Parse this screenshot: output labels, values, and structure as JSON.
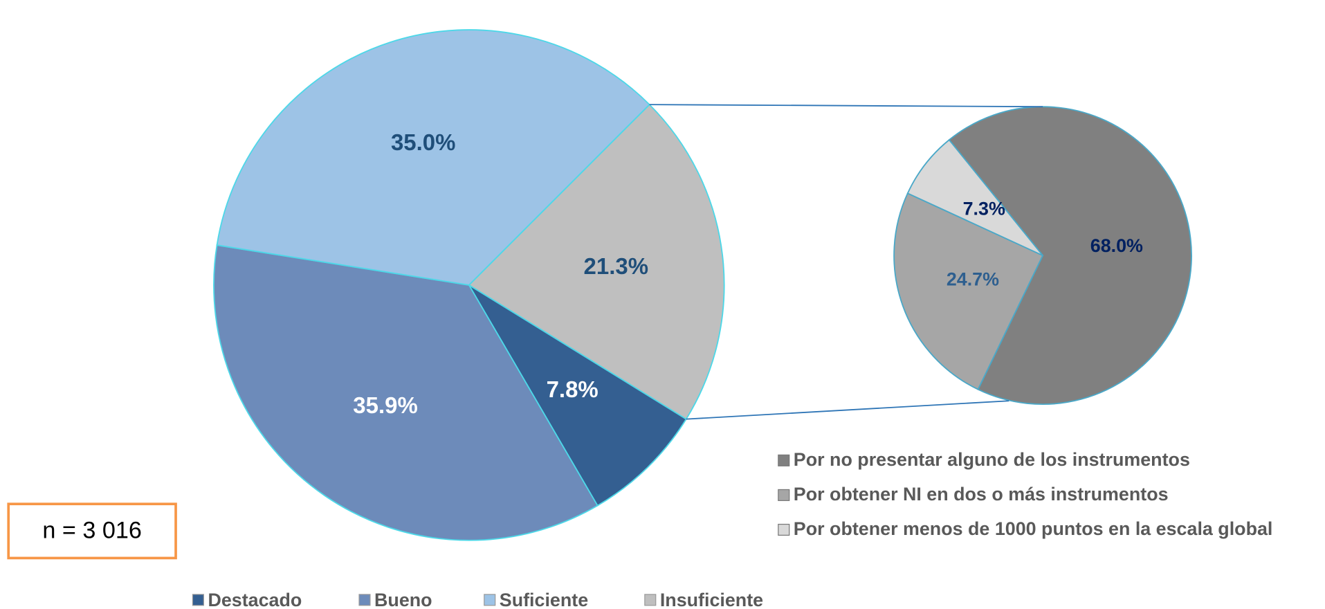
{
  "chart_data": [
    {
      "type": "pie",
      "categories": [
        "Destacado",
        "Bueno",
        "Suficiente",
        "Insuficiente"
      ],
      "values": [
        7.8,
        35.9,
        35.0,
        21.3
      ],
      "value_labels": [
        "7.8%",
        "35.9%",
        "35.0%",
        "21.3%"
      ],
      "colors": [
        "#345f91",
        "#6d8bba",
        "#9dc3e6",
        "#bfbfbf"
      ],
      "legend": "bottom",
      "annotation": "n = 3 016"
    },
    {
      "type": "pie",
      "categories": [
        "Por no presentar alguno de los instrumentos",
        "Por obtener NI en dos o más instrumentos",
        "Por obtener menos de 1000 puntos en la escala global"
      ],
      "values": [
        68.0,
        24.7,
        7.3
      ],
      "value_labels": [
        "68.0%",
        "24.7%",
        "7.3%"
      ],
      "colors": [
        "#808080",
        "#a6a6a6",
        "#d9d9d9"
      ],
      "legend": "bottom"
    }
  ]
}
